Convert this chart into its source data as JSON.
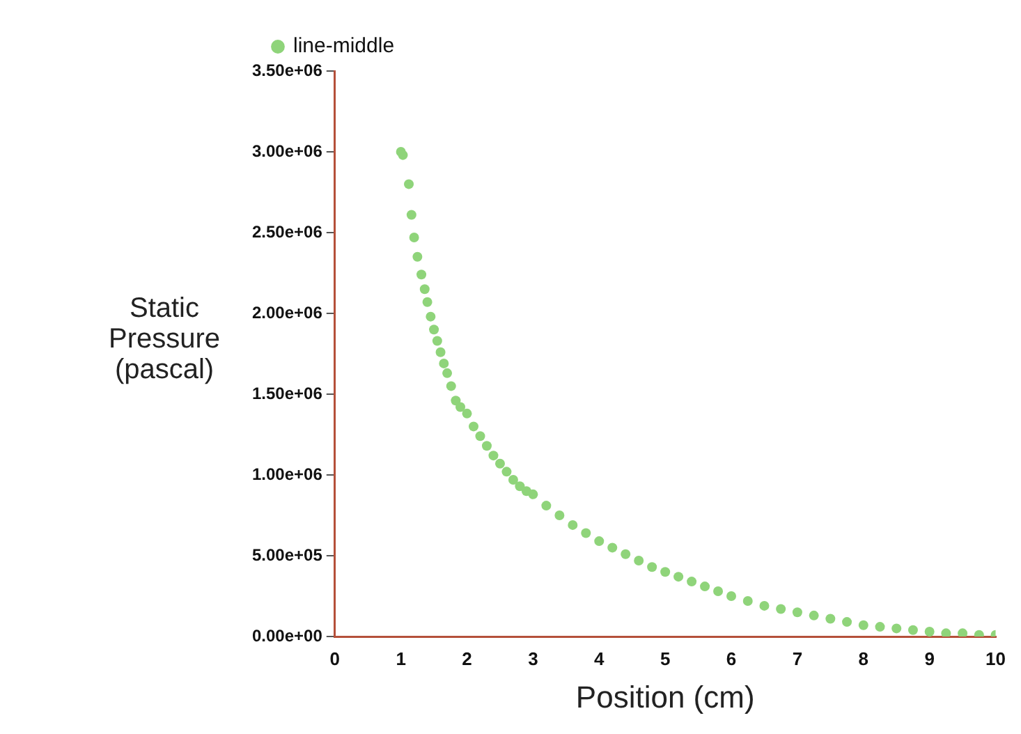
{
  "chart_data": {
    "type": "scatter",
    "xlabel": "Position (cm)",
    "ylabel": "Static Pressure (pascal)",
    "legend": "top left",
    "marker": "circle",
    "grid": false,
    "xlim": [
      0,
      10
    ],
    "xticks": [
      0,
      1,
      2,
      3,
      4,
      5,
      6,
      7,
      8,
      9,
      10
    ],
    "ylim": [
      0,
      3500000
    ],
    "yticks": [
      {
        "value": 0,
        "label": "0.00e+00"
      },
      {
        "value": 500000,
        "label": "5.00e+05"
      },
      {
        "value": 1000000,
        "label": "1.00e+06"
      },
      {
        "value": 1500000,
        "label": "1.50e+06"
      },
      {
        "value": 2000000,
        "label": "2.00e+06"
      },
      {
        "value": 2500000,
        "label": "2.50e+06"
      },
      {
        "value": 3000000,
        "label": "3.00e+06"
      },
      {
        "value": 3500000,
        "label": "3.50e+06"
      }
    ],
    "series": [
      {
        "name": "line-middle",
        "color": "#8fd47a",
        "x": [
          1.0,
          1.03,
          1.12,
          1.16,
          1.2,
          1.25,
          1.31,
          1.36,
          1.4,
          1.45,
          1.5,
          1.55,
          1.6,
          1.65,
          1.7,
          1.76,
          1.83,
          1.9,
          2.0,
          2.1,
          2.2,
          2.3,
          2.4,
          2.5,
          2.6,
          2.7,
          2.8,
          2.9,
          3.0,
          3.2,
          3.4,
          3.6,
          3.8,
          4.0,
          4.2,
          4.4,
          4.6,
          4.8,
          5.0,
          5.2,
          5.4,
          5.6,
          5.8,
          6.0,
          6.25,
          6.5,
          6.75,
          7.0,
          7.25,
          7.5,
          7.75,
          8.0,
          8.25,
          8.5,
          8.75,
          9.0,
          9.25,
          9.5,
          9.75,
          10.0
        ],
        "values": [
          3000000,
          2980000,
          2800000,
          2610000,
          2470000,
          2350000,
          2240000,
          2150000,
          2070000,
          1980000,
          1900000,
          1830000,
          1760000,
          1690000,
          1630000,
          1550000,
          1460000,
          1420000,
          1380000,
          1300000,
          1240000,
          1180000,
          1120000,
          1070000,
          1020000,
          970000,
          930000,
          900000,
          880000,
          810000,
          750000,
          690000,
          640000,
          590000,
          550000,
          510000,
          470000,
          430000,
          400000,
          370000,
          340000,
          310000,
          280000,
          250000,
          220000,
          190000,
          170000,
          150000,
          130000,
          110000,
          90000,
          70000,
          60000,
          50000,
          40000,
          30000,
          20000,
          20000,
          10000,
          10000
        ]
      }
    ]
  }
}
